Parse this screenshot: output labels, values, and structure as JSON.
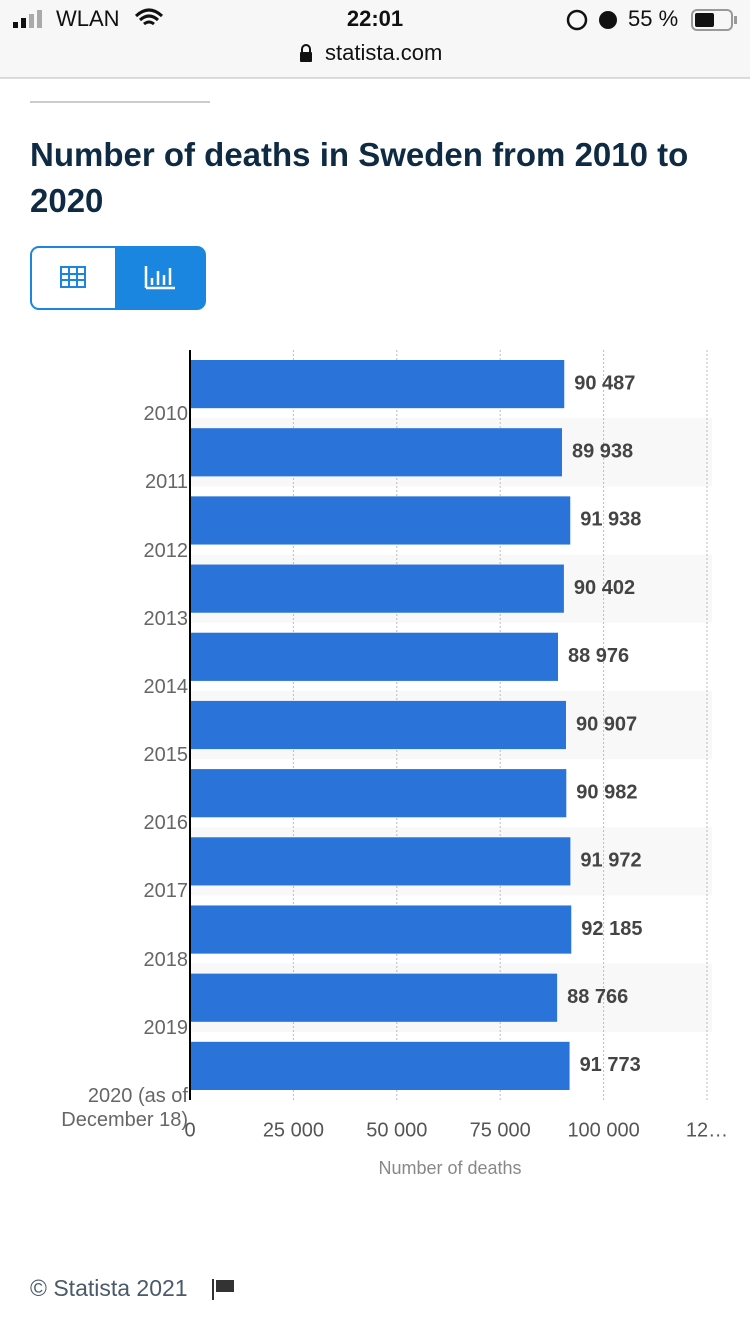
{
  "status_bar": {
    "carrier": "WLAN",
    "time": "22:01",
    "battery": "55 %"
  },
  "address_bar": {
    "url": "statista.com"
  },
  "footer": {
    "copyright": "© Statista 2021"
  },
  "chart_data": {
    "type": "bar",
    "orientation": "horizontal",
    "title": "Number of deaths in Sweden from 2010 to 2020",
    "x_label": "Number of deaths",
    "categories": [
      "2010",
      "2011",
      "2012",
      "2013",
      "2014",
      "2015",
      "2016",
      "2017",
      "2018",
      "2019",
      "2020 (as of December 18)"
    ],
    "values": [
      90487,
      89938,
      91938,
      90402,
      88976,
      90907,
      90982,
      91972,
      92185,
      88766,
      91773
    ],
    "value_labels": [
      "90 487",
      "89 938",
      "91 938",
      "90 402",
      "88 976",
      "90 907",
      "90 982",
      "91 972",
      "92 185",
      "88 766",
      "91 773"
    ],
    "color": "#2a74d9",
    "xlim": [
      0,
      125000
    ],
    "xticks": [
      0,
      {
        "value": 25000,
        "label": "25 000"
      },
      {
        "value": 50000,
        "label": "50 000"
      },
      {
        "value": 75000,
        "label": "75 000"
      },
      {
        "value": 100000,
        "label": "100 000"
      },
      {
        "value": 125000,
        "label": "12…"
      }
    ],
    "grid": true
  }
}
